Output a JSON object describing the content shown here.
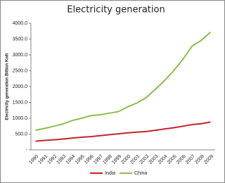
{
  "chart_data": {
    "type": "line",
    "title": "Electricity generation",
    "y_label": "Electricity generation Billion Kwh",
    "categories": [
      "1990",
      "1991",
      "1992",
      "1993",
      "1994",
      "1995",
      "1996",
      "1997",
      "1998",
      "1999",
      "2000",
      "2001",
      "2002",
      "2003",
      "2004",
      "2005",
      "2006",
      "2007",
      "2008",
      "2009"
    ],
    "series": [
      {
        "name": "India",
        "color": "#c0262d",
        "values": [
          275,
          300,
          320,
          345,
          375,
          400,
          420,
          450,
          480,
          510,
          540,
          560,
          580,
          620,
          660,
          700,
          750,
          800,
          830,
          880
        ]
      },
      {
        "name": "China",
        "color": "#8cbd4f",
        "values": [
          620,
          680,
          750,
          820,
          930,
          1000,
          1080,
          1110,
          1160,
          1210,
          1360,
          1480,
          1650,
          1910,
          2190,
          2500,
          2860,
          3280,
          3460,
          3720
        ]
      }
    ],
    "ylim": [
      0,
      4000
    ],
    "yticks": [
      {
        "value": 0,
        "label": "-"
      },
      {
        "value": 500,
        "label": "500.0"
      },
      {
        "value": 1000,
        "label": "1000.0"
      },
      {
        "value": 1500,
        "label": "1500.0"
      },
      {
        "value": 2000,
        "label": "2000.0"
      },
      {
        "value": 2500,
        "label": "2500.0"
      },
      {
        "value": 3000,
        "label": "3000.0"
      },
      {
        "value": 3500,
        "label": "3500.0"
      },
      {
        "value": 4000,
        "label": "4000.0"
      }
    ],
    "legend": "bottom"
  }
}
